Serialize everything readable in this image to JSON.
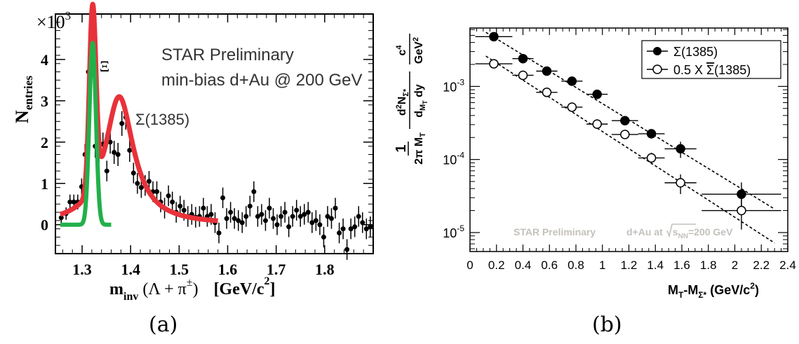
{
  "panels": {
    "a": {
      "label": "(a)"
    },
    "b": {
      "label": "(b)"
    }
  },
  "chart_data": [
    {
      "type": "scatter",
      "title": "",
      "annotations": [
        "STAR Preliminary",
        "min-bias d+Au @ 200 GeV",
        "Ξ",
        "Σ(1385)"
      ],
      "ylabel_main": "N",
      "ylabel_sub": "entries",
      "y_multiplier": "×10",
      "y_multiplier_exp": "3",
      "xlabel_parts": {
        "m": "m",
        "sub": "inv",
        "expr": "(Λ + π",
        "pm": "±",
        "close": ")",
        "unit": "[GeV/c",
        "unit_exp": "2",
        "unit_close": "]"
      },
      "xlim": [
        1.245,
        1.9
      ],
      "ylim": [
        -0.7,
        5.1
      ],
      "x_ticks": [
        "1.3",
        "1.4",
        "1.5",
        "1.6",
        "1.7",
        "1.8"
      ],
      "x_tick_values": [
        1.3,
        1.4,
        1.5,
        1.6,
        1.7,
        1.8
      ],
      "y_ticks": [
        "0",
        "1",
        "2",
        "3",
        "4"
      ],
      "y_tick_values": [
        0,
        1,
        2,
        3,
        4
      ],
      "total_fit_color": "#e8323a",
      "xi_fit_color": "#22b04a",
      "xi_fit": {
        "mass": 1.3217,
        "width": 0.0068,
        "amplitude": 4.4,
        "range": [
          1.255,
          1.36
        ]
      },
      "total_fit": {
        "range": [
          1.255,
          1.58
        ],
        "sigma_mass": 1.3765,
        "sigma_gamma": 0.036,
        "sigma_amplitude": 3.1
      },
      "points": {
        "x": [
          1.257,
          1.267,
          1.275,
          1.283,
          1.291,
          1.299,
          1.306,
          1.313,
          1.32,
          1.327,
          1.335,
          1.343,
          1.351,
          1.358,
          1.366,
          1.374,
          1.382,
          1.39,
          1.398,
          1.406,
          1.414,
          1.422,
          1.43,
          1.438,
          1.446,
          1.454,
          1.462,
          1.47,
          1.478,
          1.486,
          1.494,
          1.502,
          1.51,
          1.518,
          1.526,
          1.534,
          1.542,
          1.55,
          1.558,
          1.566,
          1.574,
          1.582,
          1.59,
          1.598,
          1.606,
          1.614,
          1.622,
          1.63,
          1.638,
          1.646,
          1.654,
          1.662,
          1.67,
          1.678,
          1.686,
          1.694,
          1.702,
          1.71,
          1.718,
          1.726,
          1.734,
          1.742,
          1.75,
          1.758,
          1.766,
          1.774,
          1.782,
          1.79,
          1.798,
          1.806,
          1.814,
          1.822,
          1.83,
          1.838,
          1.846,
          1.854,
          1.862,
          1.87,
          1.878,
          1.886,
          1.894
        ],
        "y": [
          0.17,
          0.27,
          0.55,
          0.55,
          0.55,
          0.92,
          1.7,
          3.7,
          4.7,
          1.9,
          1.75,
          1.95,
          1.3,
          2.0,
          1.75,
          1.7,
          2.45,
          2.6,
          1.8,
          1.25,
          1.0,
          0.9,
          0.95,
          1.05,
          0.8,
          0.8,
          0.55,
          0.4,
          0.7,
          0.55,
          0.3,
          0.45,
          0.35,
          0.2,
          0.25,
          0.18,
          0.2,
          0.4,
          0.2,
          0.25,
          0.05,
          -0.2,
          0.65,
          0.15,
          0.3,
          0.15,
          0.1,
          0.05,
          0.2,
          0.45,
          0.8,
          0.2,
          0.25,
          0.1,
          0.4,
          0.15,
          0.0,
          0.2,
          0.3,
          -0.05,
          0.2,
          0.35,
          0.2,
          0.25,
          0.3,
          0.05,
          0.1,
          0.0,
          -0.3,
          0.2,
          0.15,
          0.4,
          -0.2,
          -0.1,
          -0.6,
          -0.1,
          -0.05,
          0.2,
          0.05,
          -0.1,
          -0.05
        ],
        "err": [
          0.15,
          0.15,
          0.18,
          0.18,
          0.18,
          0.2,
          0.25,
          0.3,
          0.32,
          0.28,
          0.28,
          0.28,
          0.25,
          0.28,
          0.28,
          0.28,
          0.3,
          0.3,
          0.28,
          0.25,
          0.25,
          0.25,
          0.25,
          0.25,
          0.25,
          0.25,
          0.25,
          0.25,
          0.25,
          0.25,
          0.25,
          0.25,
          0.25,
          0.25,
          0.25,
          0.25,
          0.25,
          0.25,
          0.25,
          0.25,
          0.25,
          0.25,
          0.25,
          0.25,
          0.25,
          0.25,
          0.25,
          0.25,
          0.25,
          0.25,
          0.25,
          0.25,
          0.25,
          0.25,
          0.25,
          0.25,
          0.25,
          0.25,
          0.25,
          0.25,
          0.25,
          0.25,
          0.25,
          0.25,
          0.25,
          0.25,
          0.25,
          0.25,
          0.25,
          0.25,
          0.25,
          0.25,
          0.25,
          0.25,
          0.25,
          0.25,
          0.25,
          0.25,
          0.25,
          0.25,
          0.25
        ]
      }
    },
    {
      "type": "scatter",
      "title": "",
      "y_scale": "log",
      "xlim": [
        0,
        2.4
      ],
      "ylim": [
        5.5e-06,
        0.0063
      ],
      "x_ticks": [
        "0",
        "0.2",
        "0.4",
        "0.6",
        "0.8",
        "1",
        "1.2",
        "1.4",
        "1.6",
        "1.8",
        "2",
        "2.2",
        "2.4"
      ],
      "x_tick_values": [
        0,
        0.2,
        0.4,
        0.6,
        0.8,
        1.0,
        1.2,
        1.4,
        1.6,
        1.8,
        2.0,
        2.2,
        2.4
      ],
      "y_ticks": [
        {
          "base": "10",
          "exp": "-3",
          "value": 0.001
        },
        {
          "base": "10",
          "exp": "-4",
          "value": 0.0001
        },
        {
          "base": "10",
          "exp": "-5",
          "value": 1e-05
        }
      ],
      "xlabel_parts": {
        "a": "M",
        "a_sub": "T",
        "b": "-M",
        "b_sub": "Σ*",
        "c": " (GeV/c",
        "c_exp": "2",
        "d": ")"
      },
      "ylabel_parts": {
        "pre": "1",
        "den": "2π M",
        "den_sub": "T",
        "num": "d",
        "num_sup": "2",
        "num2": "N",
        "num2_sub": "Σ*",
        "den2": "d",
        "den2_sub": "M",
        "den2_subsub": "T",
        "den3": " dy",
        "c": "c",
        "c_sup": "4",
        "gev": "GeV",
        "gev_sup": "2"
      },
      "annotation": {
        "left": "STAR Preliminary",
        "mid": "d+Au at",
        "sqrt": "s",
        "sqrt_sub": "NN",
        "right": "=200 GeV"
      },
      "legend_position": "top-right",
      "series": [
        {
          "name": "Σ(1385)",
          "marker": "filled-circle",
          "x": [
            0.18,
            0.4,
            0.58,
            0.77,
            0.96,
            1.17,
            1.37,
            1.59,
            2.05
          ],
          "y": [
            0.0048,
            0.0024,
            0.00162,
            0.00118,
            0.00078,
            0.00034,
            0.000225,
            0.00014,
            3.35e-05
          ],
          "xerr": [
            0.14,
            0.08,
            0.08,
            0.08,
            0.08,
            0.1,
            0.1,
            0.12,
            0.3
          ],
          "yerr_frac": [
            0.08,
            0.08,
            0.08,
            0.08,
            0.08,
            0.1,
            0.14,
            0.25,
            0.45
          ]
        },
        {
          "name": "0.5 X ",
          "name_bar": "Σ",
          "name_tail": "(1385)",
          "marker": "open-circle",
          "x": [
            0.18,
            0.4,
            0.58,
            0.77,
            0.96,
            1.17,
            1.37,
            1.59,
            2.05
          ],
          "y": [
            0.00204,
            0.00142,
            0.00083,
            0.00052,
            0.000305,
            0.00022,
            0.000105,
            4.8e-05,
            2e-05
          ],
          "xerr": [
            0.14,
            0.08,
            0.08,
            0.08,
            0.08,
            0.1,
            0.1,
            0.12,
            0.3
          ],
          "yerr_frac": [
            0.1,
            0.08,
            0.08,
            0.08,
            0.08,
            0.12,
            0.18,
            0.3,
            0.45
          ]
        }
      ],
      "fit_lines": [
        {
          "x": [
            0.12,
            2.3
          ],
          "y": [
            0.0055,
            2.1e-05
          ]
        },
        {
          "x": [
            0.12,
            2.3
          ],
          "y": [
            0.0026,
            7.2e-06
          ]
        }
      ]
    }
  ]
}
